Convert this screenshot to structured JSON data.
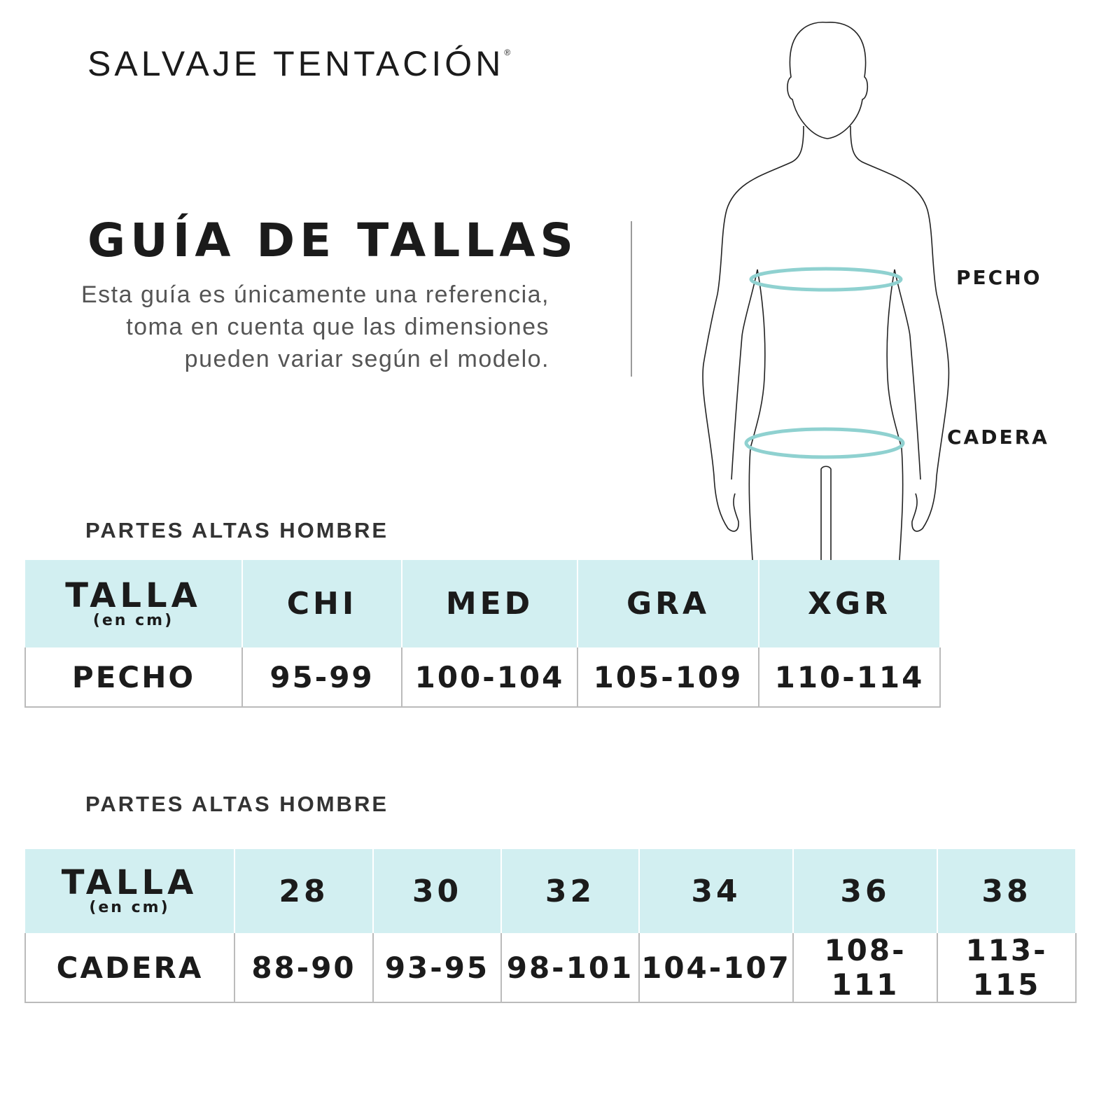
{
  "brand": {
    "name": "SALVAJE TENTACIÓN",
    "mark": "®"
  },
  "heading": {
    "title": "GUÍA DE TALLAS",
    "description": "Esta guía es únicamente una referencia, toma en cuenta que las dimensiones pueden variar según el modelo."
  },
  "figure": {
    "labels": {
      "chest": "PECHO",
      "hip": "CADERA"
    },
    "ring_color": "#8fd1d0"
  },
  "colors": {
    "header_bg": "#d2eff1",
    "text": "#1b1b1b"
  },
  "table1": {
    "section_title": "PARTES ALTAS HOMBRE",
    "header_label": "TALLA",
    "header_unit": "(en cm)",
    "sizes": [
      "CHI",
      "MED",
      "GRA",
      "XGR"
    ],
    "row": {
      "label": "PECHO",
      "values": [
        "95-99",
        "100-104",
        "105-109",
        "110-114"
      ]
    }
  },
  "table2": {
    "section_title": "PARTES ALTAS HOMBRE",
    "header_label": "TALLA",
    "header_unit": "(en cm)",
    "sizes": [
      "28",
      "30",
      "32",
      "34",
      "36",
      "38"
    ],
    "row": {
      "label": "CADERA",
      "values": [
        "88-90",
        "93-95",
        "98-101",
        "104-107",
        "108-111",
        "113-115"
      ]
    }
  }
}
